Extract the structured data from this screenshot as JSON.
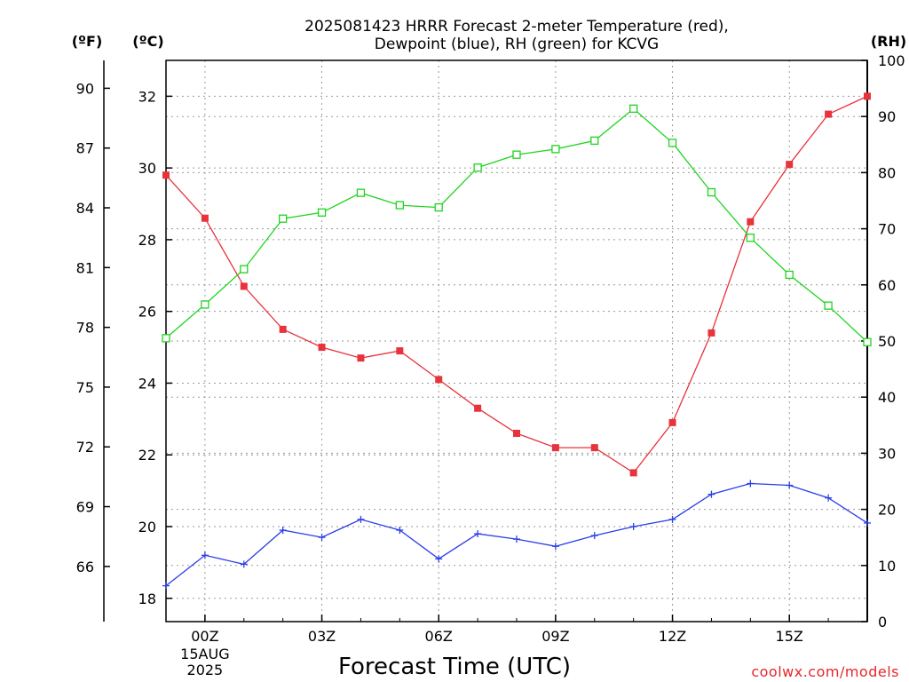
{
  "chart_data": {
    "type": "line",
    "title_lines": [
      "2025081423 HRRR Forecast 2-meter Temperature (red),",
      "Dewpoint (blue), RH (green) for KCVG"
    ],
    "xlabel": "Forecast Time (UTC)",
    "credit": "coolwx.com/models",
    "units": {
      "fahrenheit": "(ºF)",
      "celsius": "(ºC)",
      "rh": "(RH)"
    },
    "x_ticks": [
      {
        "hour": 0,
        "label": "00Z",
        "sub": [
          "15AUG",
          "2025"
        ]
      },
      {
        "hour": 3,
        "label": "03Z"
      },
      {
        "hour": 6,
        "label": "06Z"
      },
      {
        "hour": 9,
        "label": "09Z"
      },
      {
        "hour": 12,
        "label": "12Z"
      },
      {
        "hour": 15,
        "label": "15Z"
      }
    ],
    "xlim": [
      -1,
      17
    ],
    "ylim_c": [
      17.35,
      33.0
    ],
    "ylim_rh": [
      0,
      100
    ],
    "celsius_ticks": [
      18,
      20,
      22,
      24,
      26,
      28,
      30,
      32
    ],
    "fahrenheit_ticks": [
      66,
      69,
      72,
      75,
      78,
      81,
      84,
      87,
      90
    ],
    "rh_ticks": [
      0,
      10,
      20,
      30,
      40,
      50,
      60,
      70,
      80,
      90,
      100
    ],
    "grid": true,
    "x": [
      -1,
      0,
      1,
      2,
      3,
      4,
      5,
      6,
      7,
      8,
      9,
      10,
      11,
      12,
      13,
      14,
      15,
      16,
      17
    ],
    "series": [
      {
        "key": "temperature",
        "color": "#e8323c",
        "marker": "filled-square",
        "axis": "celsius",
        "values": [
          29.8,
          28.6,
          26.7,
          25.5,
          25.0,
          24.7,
          24.9,
          24.1,
          23.3,
          22.6,
          22.2,
          22.2,
          21.5,
          22.9,
          25.4,
          28.5,
          30.1,
          31.5,
          32.0
        ]
      },
      {
        "key": "dewpoint",
        "color": "#2a3ee8",
        "marker": "plus",
        "axis": "celsius",
        "values": [
          18.35,
          19.2,
          18.95,
          19.9,
          19.7,
          20.2,
          19.9,
          19.1,
          19.8,
          19.65,
          19.45,
          19.75,
          20.0,
          20.2,
          20.9,
          21.2,
          21.15,
          20.8,
          20.1
        ]
      },
      {
        "key": "rh",
        "color": "#1ed41e",
        "marker": "open-square",
        "axis": "rh",
        "values": [
          50.5,
          56.5,
          62.8,
          71.8,
          72.9,
          76.4,
          74.2,
          73.8,
          80.9,
          83.2,
          84.2,
          85.7,
          91.4,
          85.3,
          76.5,
          68.4,
          61.8,
          56.3,
          49.8
        ]
      }
    ]
  }
}
